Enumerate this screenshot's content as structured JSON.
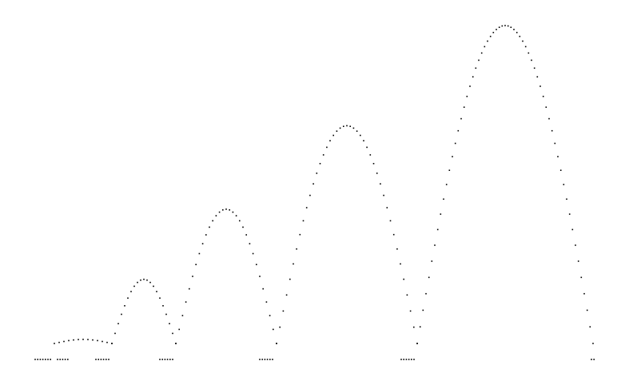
{
  "figure": {
    "description_free": true,
    "dot_color": "#000000",
    "background": "#ffffff",
    "arches": [
      {
        "index": 1,
        "peak_value": 0.06
      },
      {
        "index": 2,
        "peak_value": 0.24
      },
      {
        "index": 3,
        "peak_value": 0.45
      },
      {
        "index": 4,
        "peak_value": 0.7
      },
      {
        "index": 5,
        "peak_value": 1.0
      }
    ]
  }
}
